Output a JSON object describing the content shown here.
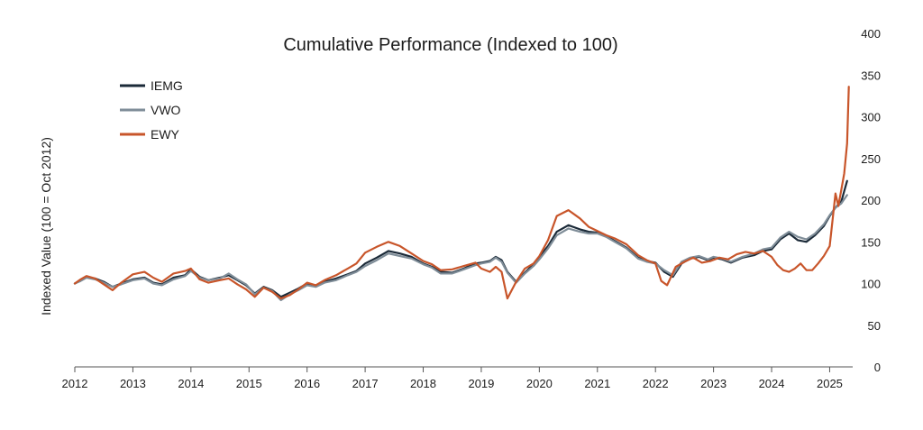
{
  "chart_data": {
    "type": "line",
    "title": "Cumulative Performance (Indexed to 100)",
    "ylabel": "Indexed Value (100 = Oct 2012)",
    "xlabel": "",
    "y_axis_side": "right",
    "ylim": [
      0,
      400
    ],
    "yticks": [
      0,
      50,
      100,
      150,
      200,
      250,
      300,
      350,
      400
    ],
    "xlim": [
      2012.0,
      2025.35
    ],
    "xticks": [
      "2012",
      "2013",
      "2014",
      "2015",
      "2016",
      "2017",
      "2018",
      "2019",
      "2020",
      "2021",
      "2022",
      "2023",
      "2024",
      "2025"
    ],
    "grid": false,
    "legend": "top-left",
    "series": [
      {
        "name": "IEMG",
        "color": "#1b2a38",
        "x": [
          2012.0,
          2012.1,
          2012.2,
          2012.35,
          2012.5,
          2012.65,
          2012.8,
          2013.0,
          2013.2,
          2013.35,
          2013.5,
          2013.7,
          2013.9,
          2014.0,
          2014.15,
          2014.3,
          2014.5,
          2014.65,
          2014.8,
          2014.95,
          2015.1,
          2015.25,
          2015.4,
          2015.55,
          2015.7,
          2015.85,
          2016.0,
          2016.15,
          2016.3,
          2016.5,
          2016.7,
          2016.85,
          2017.0,
          2017.2,
          2017.4,
          2017.6,
          2017.8,
          2018.0,
          2018.15,
          2018.3,
          2018.5,
          2018.7,
          2018.9,
          2019.0,
          2019.15,
          2019.25,
          2019.35,
          2019.45,
          2019.6,
          2019.75,
          2019.9,
          2020.0,
          2020.15,
          2020.3,
          2020.5,
          2020.7,
          2020.85,
          2021.0,
          2021.15,
          2021.3,
          2021.5,
          2021.7,
          2021.85,
          2022.0,
          2022.15,
          2022.3,
          2022.45,
          2022.6,
          2022.75,
          2022.9,
          2023.0,
          2023.15,
          2023.3,
          2023.5,
          2023.7,
          2023.85,
          2024.0,
          2024.15,
          2024.3,
          2024.45,
          2024.6,
          2024.75,
          2024.9,
          2025.0,
          2025.1,
          2025.2,
          2025.3
        ],
        "y": [
          100,
          104,
          108,
          106,
          102,
          96,
          100,
          105,
          107,
          101,
          99,
          107,
          110,
          117,
          108,
          104,
          107,
          110,
          104,
          98,
          88,
          96,
          92,
          84,
          89,
          94,
          100,
          97,
          102,
          106,
          111,
          115,
          124,
          131,
          139,
          136,
          132,
          124,
          120,
          114,
          113,
          118,
          124,
          125,
          127,
          132,
          128,
          114,
          102,
          113,
          123,
          132,
          145,
          162,
          170,
          165,
          162,
          161,
          157,
          151,
          143,
          131,
          127,
          125,
          114,
          108,
          124,
          130,
          132,
          128,
          131,
          129,
          125,
          131,
          134,
          139,
          141,
          153,
          160,
          152,
          150,
          158,
          169,
          181,
          191,
          198,
          223
        ]
      },
      {
        "name": "VWO",
        "color": "#7f8d98",
        "x": [
          2012.0,
          2012.1,
          2012.2,
          2012.35,
          2012.5,
          2012.65,
          2012.8,
          2013.0,
          2013.2,
          2013.35,
          2013.5,
          2013.7,
          2013.9,
          2014.0,
          2014.15,
          2014.3,
          2014.5,
          2014.65,
          2014.8,
          2014.95,
          2015.1,
          2015.25,
          2015.4,
          2015.55,
          2015.7,
          2015.85,
          2016.0,
          2016.15,
          2016.3,
          2016.5,
          2016.7,
          2016.85,
          2017.0,
          2017.2,
          2017.4,
          2017.6,
          2017.8,
          2018.0,
          2018.15,
          2018.3,
          2018.5,
          2018.7,
          2018.9,
          2019.0,
          2019.15,
          2019.25,
          2019.35,
          2019.45,
          2019.6,
          2019.75,
          2019.9,
          2020.0,
          2020.15,
          2020.3,
          2020.5,
          2020.7,
          2020.85,
          2021.0,
          2021.15,
          2021.3,
          2021.5,
          2021.7,
          2021.85,
          2022.0,
          2022.15,
          2022.3,
          2022.45,
          2022.6,
          2022.75,
          2022.9,
          2023.0,
          2023.15,
          2023.3,
          2023.5,
          2023.7,
          2023.85,
          2024.0,
          2024.15,
          2024.3,
          2024.45,
          2024.6,
          2024.75,
          2024.9,
          2025.0,
          2025.1,
          2025.2,
          2025.3
        ],
        "y": [
          100,
          103,
          107,
          105,
          101,
          96,
          99,
          104,
          106,
          100,
          98,
          105,
          109,
          115,
          107,
          104,
          106,
          112,
          105,
          99,
          87,
          95,
          91,
          80,
          87,
          92,
          98,
          96,
          101,
          104,
          110,
          114,
          121,
          128,
          136,
          133,
          130,
          123,
          119,
          112,
          112,
          117,
          122,
          124,
          126,
          131,
          126,
          113,
          101,
          112,
          121,
          129,
          142,
          158,
          166,
          162,
          160,
          160,
          156,
          150,
          142,
          130,
          126,
          124,
          116,
          110,
          126,
          131,
          133,
          129,
          132,
          130,
          126,
          132,
          136,
          141,
          143,
          155,
          162,
          156,
          153,
          160,
          171,
          182,
          191,
          196,
          206
        ]
      },
      {
        "name": "EWY",
        "color": "#c8552a",
        "x": [
          2012.0,
          2012.1,
          2012.2,
          2012.35,
          2012.5,
          2012.65,
          2012.8,
          2013.0,
          2013.2,
          2013.35,
          2013.5,
          2013.7,
          2013.9,
          2014.0,
          2014.15,
          2014.3,
          2014.5,
          2014.65,
          2014.8,
          2014.95,
          2015.1,
          2015.25,
          2015.4,
          2015.55,
          2015.7,
          2015.85,
          2016.0,
          2016.15,
          2016.3,
          2016.5,
          2016.7,
          2016.85,
          2017.0,
          2017.2,
          2017.4,
          2017.6,
          2017.8,
          2018.0,
          2018.15,
          2018.3,
          2018.5,
          2018.7,
          2018.9,
          2019.0,
          2019.15,
          2019.25,
          2019.35,
          2019.45,
          2019.6,
          2019.75,
          2019.9,
          2020.0,
          2020.15,
          2020.3,
          2020.5,
          2020.7,
          2020.85,
          2021.0,
          2021.15,
          2021.3,
          2021.5,
          2021.7,
          2021.85,
          2022.0,
          2022.1,
          2022.2,
          2022.35,
          2022.5,
          2022.65,
          2022.8,
          2022.95,
          2023.1,
          2023.25,
          2023.4,
          2023.55,
          2023.7,
          2023.85,
          2024.0,
          2024.1,
          2024.2,
          2024.3,
          2024.4,
          2024.5,
          2024.6,
          2024.7,
          2024.8,
          2024.9,
          2025.0,
          2025.1,
          2025.15,
          2025.2,
          2025.25,
          2025.3,
          2025.33
        ],
        "y": [
          100,
          105,
          109,
          106,
          99,
          92,
          101,
          111,
          114,
          107,
          102,
          112,
          115,
          118,
          105,
          101,
          104,
          106,
          99,
          93,
          84,
          95,
          90,
          82,
          86,
          93,
          101,
          98,
          104,
          110,
          118,
          124,
          137,
          144,
          150,
          145,
          136,
          127,
          123,
          116,
          117,
          121,
          125,
          118,
          114,
          120,
          114,
          82,
          102,
          118,
          124,
          133,
          152,
          181,
          188,
          178,
          168,
          163,
          158,
          154,
          147,
          134,
          128,
          124,
          103,
          98,
          120,
          126,
          131,
          125,
          127,
          131,
          129,
          135,
          138,
          136,
          139,
          132,
          122,
          116,
          114,
          118,
          124,
          116,
          116,
          124,
          133,
          145,
          208,
          193,
          212,
          232,
          268,
          336
        ]
      }
    ]
  }
}
